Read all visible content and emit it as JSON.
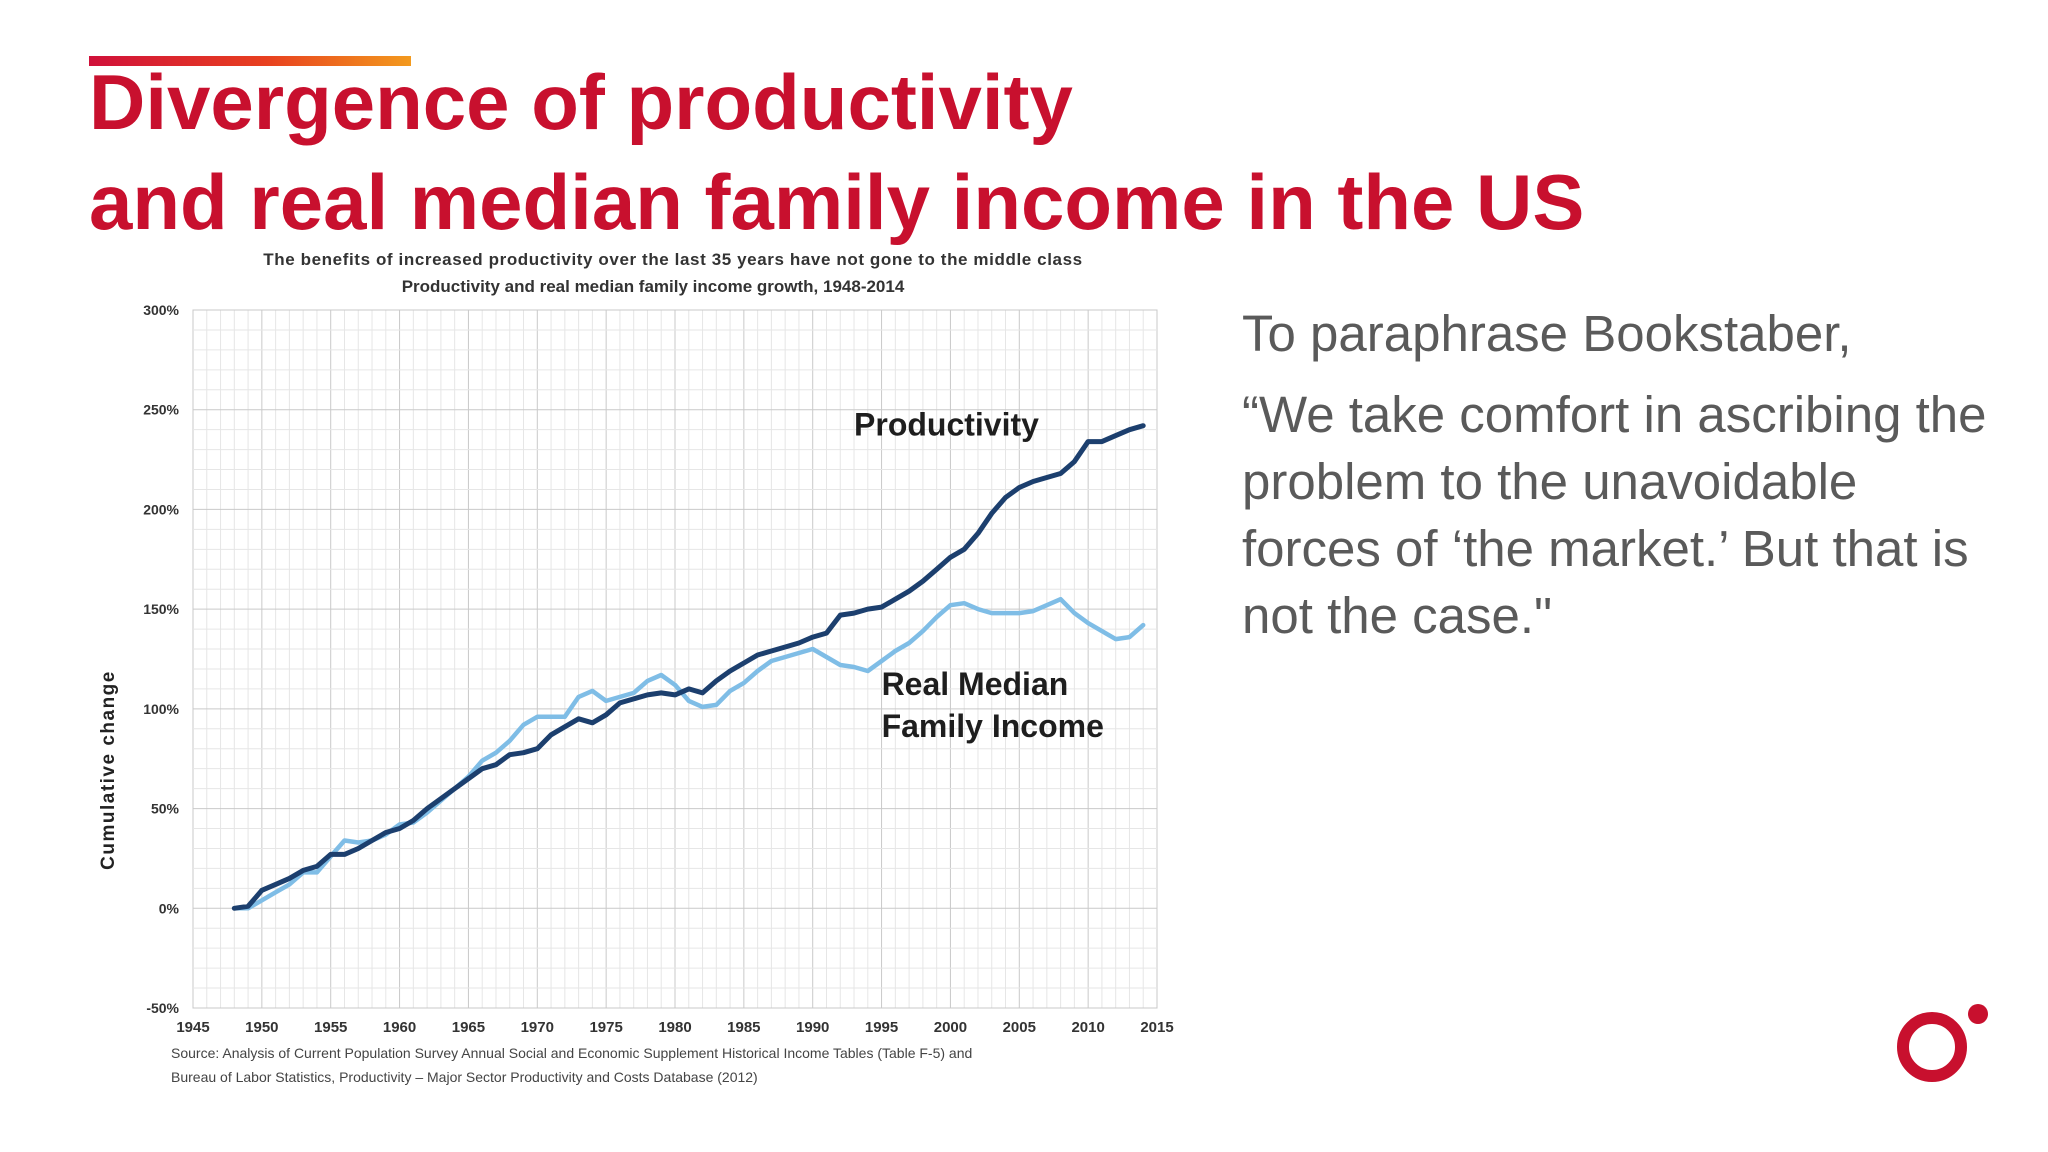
{
  "slide": {
    "title_line1": "Divergence of productivity",
    "title_line2": "and real median family income in the US",
    "quote_intro": "To paraphrase Bookstaber,",
    "quote_text": "“We take comfort in ascribing the problem to the unavoidable forces of ‘the market.’ But that is not the case.\"",
    "accent_color": "#c8102e",
    "logo_icon": "brand-ring-dot-icon"
  },
  "chart_data": {
    "type": "line",
    "title": "The benefits of increased productivity over the last 35 years have not gone to the middle class",
    "subtitle": "Productivity and real median family income growth, 1948-2014",
    "ylabel": "Cumulative change",
    "xlabel": "",
    "xlim": [
      1945,
      2015
    ],
    "ylim": [
      -50,
      300
    ],
    "x_ticks": [
      "1945",
      "1950",
      "1955",
      "1960",
      "1965",
      "1970",
      "1975",
      "1980",
      "1985",
      "1990",
      "1995",
      "2000",
      "2005",
      "2010",
      "2015"
    ],
    "y_ticks": [
      "-50%",
      "0%",
      "50%",
      "100%",
      "150%",
      "200%",
      "250%",
      "300%"
    ],
    "grid": true,
    "legend": "inline labels",
    "source_line1": "Source: Analysis of Current Population Survey Annual Social and Economic Supplement Historical Income Tables (Table F-5) and",
    "source_line2": "Bureau of Labor Statistics, Productivity – Major Sector Productivity and Costs Database (2012)",
    "series": [
      {
        "name": "Productivity",
        "color": "#1c3f6e",
        "label_lines": [
          "Productivity"
        ],
        "x": [
          1948,
          1949,
          1950,
          1951,
          1952,
          1953,
          1954,
          1955,
          1956,
          1957,
          1958,
          1959,
          1960,
          1961,
          1962,
          1963,
          1964,
          1965,
          1966,
          1967,
          1968,
          1969,
          1970,
          1971,
          1972,
          1973,
          1974,
          1975,
          1976,
          1977,
          1978,
          1979,
          1980,
          1981,
          1982,
          1983,
          1984,
          1985,
          1986,
          1987,
          1988,
          1989,
          1990,
          1991,
          1992,
          1993,
          1994,
          1995,
          1996,
          1997,
          1998,
          1999,
          2000,
          2001,
          2002,
          2003,
          2004,
          2005,
          2006,
          2007,
          2008,
          2009,
          2010,
          2011,
          2012,
          2013,
          2014
        ],
        "values": [
          0,
          1,
          9,
          12,
          15,
          19,
          21,
          27,
          27,
          30,
          34,
          38,
          40,
          44,
          50,
          55,
          60,
          65,
          70,
          72,
          77,
          78,
          80,
          87,
          91,
          95,
          93,
          97,
          103,
          105,
          107,
          108,
          107,
          110,
          108,
          114,
          119,
          123,
          127,
          129,
          131,
          133,
          136,
          138,
          147,
          148,
          150,
          151,
          155,
          159,
          164,
          170,
          176,
          180,
          188,
          198,
          206,
          211,
          214,
          216,
          218,
          224,
          234,
          234,
          237,
          240,
          242
        ]
      },
      {
        "name": "Real Median Family Income",
        "color": "#7fbde6",
        "label_lines": [
          "Real Median",
          "Family Income"
        ],
        "x": [
          1948,
          1949,
          1950,
          1951,
          1952,
          1953,
          1954,
          1955,
          1956,
          1957,
          1958,
          1959,
          1960,
          1961,
          1962,
          1963,
          1964,
          1965,
          1966,
          1967,
          1968,
          1969,
          1970,
          1971,
          1972,
          1973,
          1974,
          1975,
          1976,
          1977,
          1978,
          1979,
          1980,
          1981,
          1982,
          1983,
          1984,
          1985,
          1986,
          1987,
          1988,
          1989,
          1990,
          1991,
          1992,
          1993,
          1994,
          1995,
          1996,
          1997,
          1998,
          1999,
          2000,
          2001,
          2002,
          2003,
          2004,
          2005,
          2006,
          2007,
          2008,
          2009,
          2010,
          2011,
          2012,
          2013,
          2014
        ],
        "values": [
          0,
          0,
          4,
          8,
          12,
          18,
          18,
          26,
          34,
          33,
          34,
          37,
          42,
          43,
          48,
          54,
          60,
          66,
          74,
          78,
          84,
          92,
          96,
          96,
          96,
          106,
          109,
          104,
          106,
          108,
          114,
          117,
          112,
          104,
          101,
          102,
          109,
          113,
          119,
          124,
          126,
          128,
          130,
          126,
          122,
          121,
          119,
          124,
          129,
          133,
          139,
          146,
          152,
          153,
          150,
          148,
          148,
          148,
          149,
          152,
          155,
          148,
          143,
          139,
          135,
          136,
          142
        ]
      }
    ]
  }
}
